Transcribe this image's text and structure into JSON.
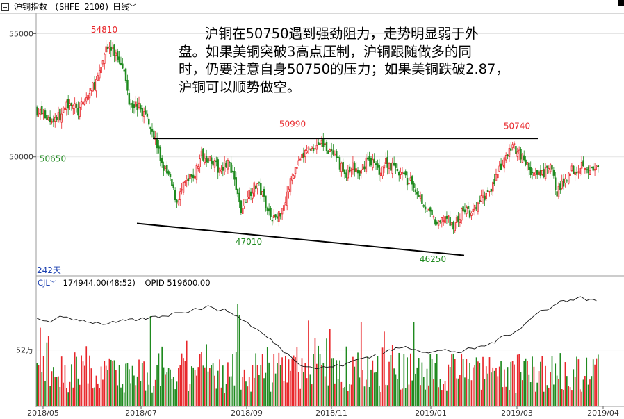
{
  "header": {
    "title": "沪铜指数",
    "code": "(SHFE 2100)",
    "period_selector": "日线"
  },
  "annotation": {
    "line1": "沪铜在50750遇到强劲阻力，走势明显弱于外",
    "line2": "盘。如果美铜突破3高点压制，沪铜跟随做多的同",
    "line3": "时，仍要注意自身50750的压力；如果美铜跌破2.87，",
    "line4": "沪铜可以顺势做空。"
  },
  "price_panel": {
    "y_ticks": [
      "55000",
      "50000"
    ],
    "period_label": "242天",
    "labels": {
      "high1": "54810",
      "low1": "50650",
      "res1": "50990",
      "low2": "47010",
      "low3": "46250",
      "res2": "50740"
    }
  },
  "volume_panel": {
    "indicator": "CJL",
    "value": "174944.00(48:52)",
    "opid": "OPID 519600.00",
    "y_tick": "52万"
  },
  "x_axis": {
    "labels": [
      "2018/05",
      "2018/07",
      "2018/09",
      "2018/11",
      "2019/01",
      "2019/03",
      "2019/04"
    ]
  },
  "colors": {
    "up": "#e8262a",
    "down": "#1f8a1f",
    "label_high": "#e8262a",
    "label_low": "#1f8a1f",
    "trendline": "#000000",
    "accent_blue": "#1a3fb0"
  },
  "chart_data": {
    "type": "candlestick",
    "title": "沪铜指数",
    "price_ylim": [
      45200,
      55800
    ],
    "price_marks": [
      55000,
      50000
    ],
    "key_levels": [
      {
        "label": "54810",
        "value": 54810,
        "date": "2018/06"
      },
      {
        "label": "50650",
        "value": 50650,
        "date": "2018/05"
      },
      {
        "label": "50990",
        "value": 50990,
        "date": "2018/10"
      },
      {
        "label": "47010",
        "value": 47010,
        "date": "2018/09"
      },
      {
        "label": "46250",
        "value": 46250,
        "date": "2019/01"
      },
      {
        "label": "50740",
        "value": 50740,
        "date": "2019/03"
      }
    ],
    "resistance_line": {
      "value": 50750,
      "from": "2018/07",
      "to": "2019/03"
    },
    "support_line": {
      "from": {
        "date": "2018/07",
        "value": 47300
      },
      "to": {
        "date": "2019/01",
        "value": 46000
      }
    },
    "close_path": [
      [
        0,
        51900
      ],
      [
        8,
        51500
      ],
      [
        15,
        51700
      ],
      [
        20,
        52300
      ],
      [
        25,
        51800
      ],
      [
        32,
        52600
      ],
      [
        38,
        53300
      ],
      [
        42,
        54500
      ],
      [
        46,
        54300
      ],
      [
        52,
        53800
      ],
      [
        56,
        52300
      ],
      [
        62,
        52000
      ],
      [
        68,
        51500
      ],
      [
        72,
        50700
      ],
      [
        76,
        49700
      ],
      [
        80,
        49200
      ],
      [
        85,
        48200
      ],
      [
        90,
        48900
      ],
      [
        96,
        49300
      ],
      [
        100,
        50100
      ],
      [
        106,
        49900
      ],
      [
        110,
        49500
      ],
      [
        116,
        49800
      ],
      [
        120,
        49000
      ],
      [
        124,
        47800
      ],
      [
        128,
        48500
      ],
      [
        134,
        48900
      ],
      [
        138,
        48300
      ],
      [
        142,
        47600
      ],
      [
        146,
        47500
      ],
      [
        150,
        48100
      ],
      [
        156,
        49400
      ],
      [
        160,
        49800
      ],
      [
        164,
        50300
      ],
      [
        168,
        50400
      ],
      [
        172,
        50600
      ],
      [
        176,
        50400
      ],
      [
        180,
        50000
      ],
      [
        184,
        49700
      ],
      [
        188,
        49200
      ],
      [
        192,
        49600
      ],
      [
        196,
        49200
      ],
      [
        200,
        49900
      ],
      [
        204,
        49800
      ],
      [
        208,
        49400
      ],
      [
        212,
        49800
      ],
      [
        216,
        49600
      ],
      [
        220,
        49400
      ],
      [
        224,
        49100
      ],
      [
        228,
        48900
      ],
      [
        232,
        48500
      ],
      [
        236,
        48000
      ],
      [
        240,
        47500
      ],
      [
        244,
        47200
      ],
      [
        248,
        47600
      ],
      [
        252,
        47200
      ],
      [
        256,
        47500
      ],
      [
        260,
        47900
      ],
      [
        264,
        47600
      ],
      [
        268,
        48100
      ],
      [
        272,
        48400
      ],
      [
        276,
        48800
      ],
      [
        280,
        49300
      ],
      [
        284,
        49800
      ],
      [
        288,
        50400
      ],
      [
        292,
        50300
      ],
      [
        296,
        49900
      ],
      [
        300,
        49400
      ],
      [
        304,
        49200
      ],
      [
        308,
        49300
      ],
      [
        312,
        49600
      ],
      [
        316,
        48600
      ],
      [
        320,
        48900
      ],
      [
        324,
        49500
      ],
      [
        328,
        49500
      ],
      [
        332,
        49800
      ],
      [
        336,
        49400
      ],
      [
        340,
        49500
      ],
      [
        342,
        49300
      ]
    ],
    "volume_ylim": [
      0,
      1100000
    ],
    "volume_mark": 520000
  }
}
